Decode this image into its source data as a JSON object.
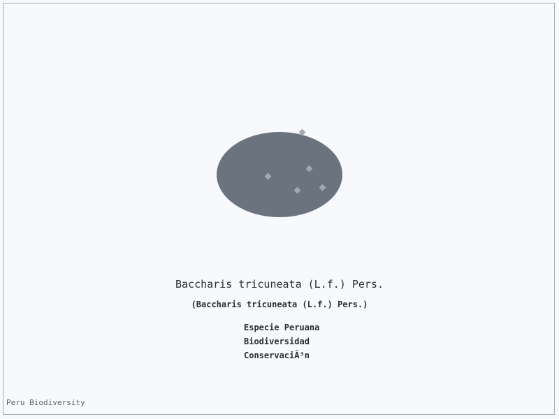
{
  "species": {
    "title": "Baccharis tricuneata (L.f.) Pers.",
    "subtitle": "(Baccharis tricuneata (L.f.) Pers.)"
  },
  "tags": [
    "Especie Peruana",
    "Biodiversidad",
    "ConservaciÃ³n"
  ],
  "footer": {
    "credit": "Peru Biodiversity"
  },
  "colors": {
    "background": "#f7f9fc",
    "blob": "#6b737e",
    "dots": "#a3a8b0",
    "text": "#2a2d33"
  }
}
